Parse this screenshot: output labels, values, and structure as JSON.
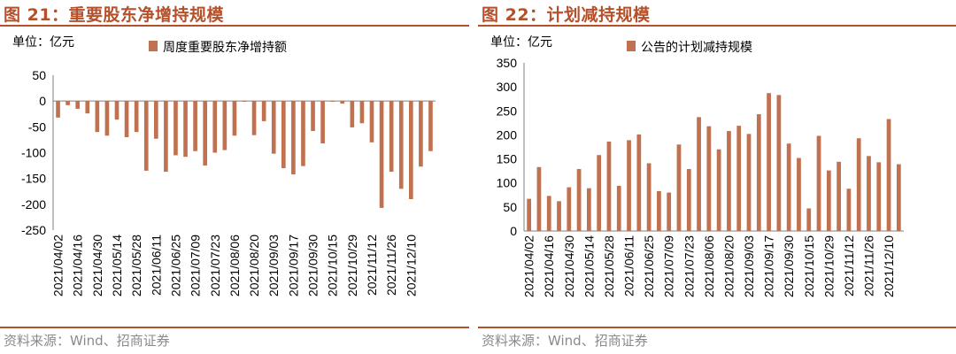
{
  "panels": [
    {
      "title": "图 21：重要股东净增持规模",
      "source": "资料来源：Wind、招商证券"
    },
    {
      "title": "图 22：计划减持规模",
      "source": "资料来源：Wind、招商证券"
    }
  ],
  "chart_data": [
    {
      "type": "bar",
      "unit_label": "单位：亿元",
      "legend": "周度重要股东净增持额",
      "color": "#c0714f",
      "ylim": [
        -250,
        50
      ],
      "yticks": [
        50,
        0,
        -50,
        -100,
        -150,
        -200,
        -250
      ],
      "grid": false,
      "x_tick_labels": [
        "2021/04/02",
        "2021/04/16",
        "2021/04/30",
        "2021/05/14",
        "2021/05/28",
        "2021/06/11",
        "2021/06/25",
        "2021/07/09",
        "2021/07/23",
        "2021/08/06",
        "2021/08/20",
        "2021/09/03",
        "2021/09/17",
        "2021/09/30",
        "2021/10/15",
        "2021/10/29",
        "2021/11/12",
        "2021/11/26",
        "2021/12/10"
      ],
      "values": [
        -32,
        -8,
        -15,
        -24,
        -60,
        -67,
        -36,
        -70,
        -60,
        -135,
        -73,
        -137,
        -105,
        -108,
        -97,
        -125,
        -100,
        -95,
        -67,
        -1,
        -66,
        -39,
        -102,
        -130,
        -142,
        -126,
        -58,
        -82,
        -1,
        -5,
        -51,
        -43,
        -80,
        -207,
        -137,
        -170,
        -190,
        -127,
        -97
      ]
    },
    {
      "type": "bar",
      "unit_label": "单位：亿元",
      "legend": "公告的计划减持规模",
      "color": "#c0714f",
      "ylim": [
        0,
        350
      ],
      "yticks": [
        0,
        50,
        100,
        150,
        200,
        250,
        300,
        350
      ],
      "grid": false,
      "x_tick_labels": [
        "2021/04/02",
        "2021/04/16",
        "2021/04/30",
        "2021/05/14",
        "2021/05/28",
        "2021/06/11",
        "2021/06/25",
        "2021/07/09",
        "2021/07/23",
        "2021/08/06",
        "2021/08/20",
        "2021/09/03",
        "2021/09/17",
        "2021/09/30",
        "2021/10/15",
        "2021/10/29",
        "2021/11/12",
        "2021/11/26",
        "2021/12/10"
      ],
      "values": [
        67,
        133,
        73,
        62,
        91,
        129,
        89,
        158,
        186,
        94,
        189,
        201,
        141,
        83,
        80,
        180,
        129,
        237,
        218,
        170,
        208,
        219,
        202,
        243,
        287,
        283,
        182,
        152,
        47,
        198,
        126,
        144,
        88,
        193,
        156,
        143,
        233,
        139
      ]
    }
  ]
}
